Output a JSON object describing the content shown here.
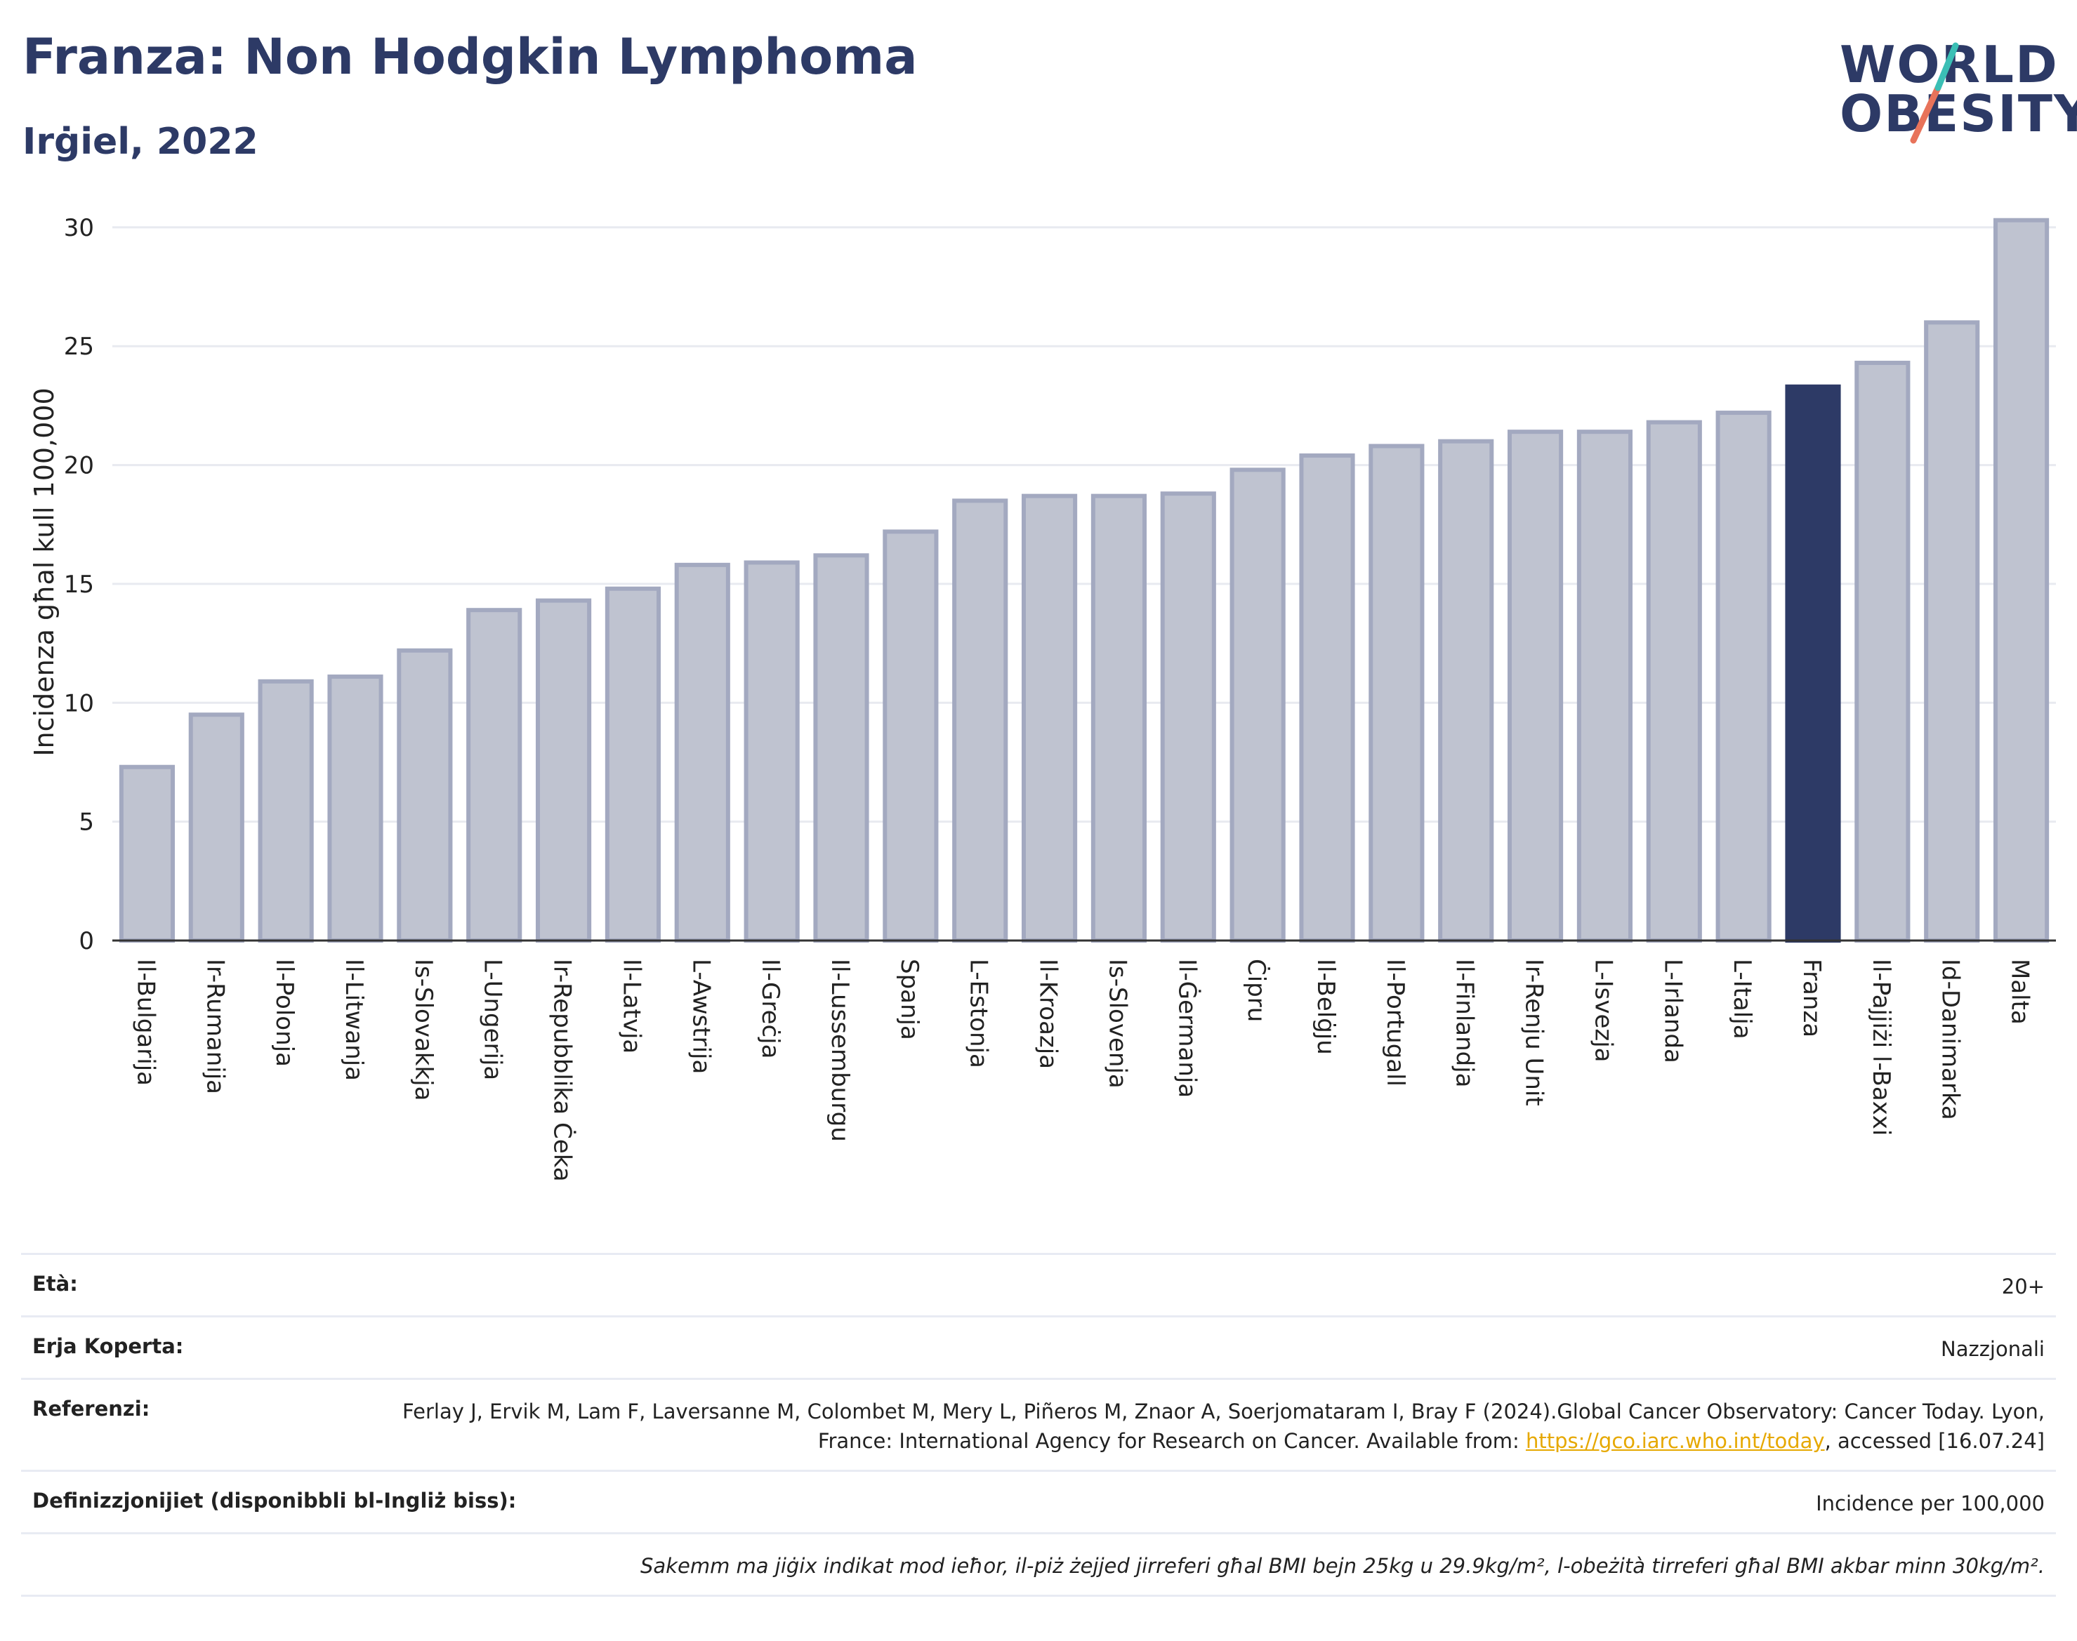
{
  "header": {
    "title": "Franza: Non Hodgkin Lymphoma",
    "subtitle": "Irġiel, 2022",
    "logo_line1": "WORLD",
    "logo_line2": "OBESITY"
  },
  "chart_data": {
    "type": "bar",
    "ylabel": "Incidenza għal kull 100,000",
    "ylim": [
      0,
      31
    ],
    "yticks": [
      0,
      5,
      10,
      15,
      20,
      25,
      30
    ],
    "grid": true,
    "categories": [
      "Il-Bulgarija",
      "Ir-Rumanija",
      "Il-Polonja",
      "Il-Litwanja",
      "Is-Slovakkja",
      "L-Ungerija",
      "Ir-Repubblika Ċeka",
      "Il-Latvja",
      "L-Awstrija",
      "Il-Greċja",
      "Il-Lussemburgu",
      "Spanja",
      "L-Estonja",
      "Il-Kroazja",
      "Is-Slovenja",
      "Il-Ġermanja",
      "Ċipru",
      "Il-Belġju",
      "Il-Portugall",
      "Il-Finlandja",
      "Ir-Renju Unit",
      "L-Isvezja",
      "L-Irlanda",
      "L-Italja",
      "Franza",
      "Il-Pajjiżi l-Baxxi",
      "Id-Danimarka",
      "Malta"
    ],
    "values": [
      7.3,
      9.5,
      10.9,
      11.1,
      12.2,
      13.9,
      14.3,
      14.8,
      15.8,
      15.9,
      16.2,
      17.2,
      18.5,
      18.7,
      18.7,
      18.8,
      19.8,
      20.4,
      20.8,
      21.0,
      21.4,
      21.4,
      21.8,
      22.2,
      23.3,
      24.3,
      26.0,
      30.3
    ],
    "highlight": "Franza",
    "colors": {
      "bar": "#bfc3d0",
      "bar_border": "#a3a9c0",
      "highlight": "#2d3a66",
      "grid": "#e8eaf0",
      "axis": "#333333"
    }
  },
  "info": {
    "age_label": "Età:",
    "age_value": "20+",
    "area_label": "Erja Koperta:",
    "area_value": "Nazzjonali",
    "ref_label": "Referenzi:",
    "ref_text1": "Ferlay J, Ervik M, Lam F, Laversanne M, Colombet M, Mery L, Piñeros M, Znaor A, Soerjomataram I, Bray F (2024).Global Cancer Observatory: Cancer Today. Lyon, France: International Agency for Research on Cancer. Available from: ",
    "ref_link": "https://gco.iarc.who.int/today",
    "ref_text2": ", accessed [16.07.24]",
    "def_label": "Definizzjonijiet (disponibbli bl-Ingliż biss):",
    "def_value": "Incidence per 100,000",
    "note": "Sakemm ma jiġix indikat mod ieħor, il-piż żejjed jirreferi għal BMI bejn 25kg u 29.9kg/m², l-obeżità tirreferi għal BMI akbar minn 30kg/m²."
  }
}
